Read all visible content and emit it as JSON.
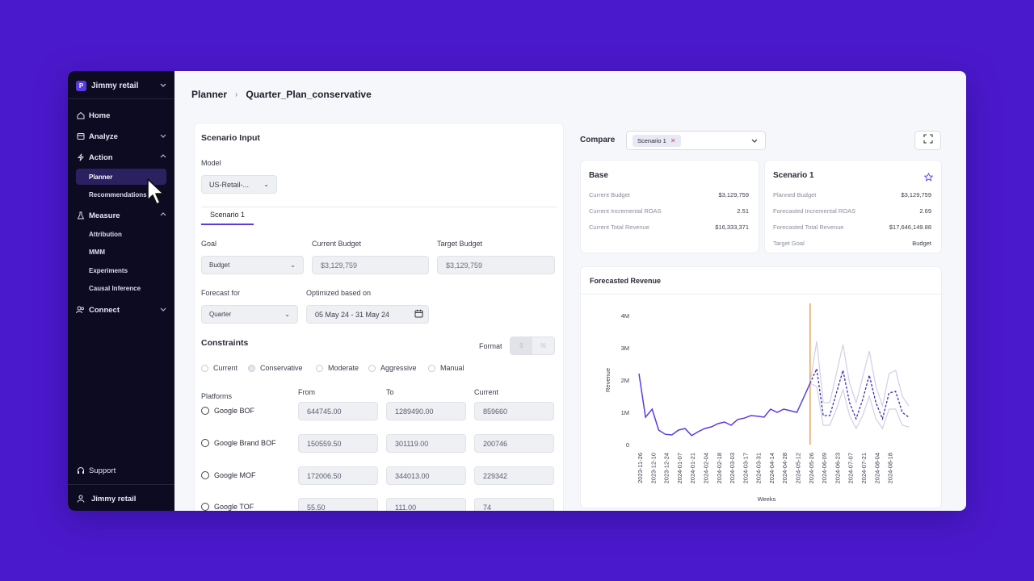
{
  "sidebar": {
    "workspace": "Jimmy retail",
    "workspace_initial": "P",
    "items": [
      {
        "label": "Home",
        "icon": "home-icon"
      },
      {
        "label": "Analyze",
        "icon": "analyze-icon"
      },
      {
        "label": "Action",
        "icon": "bolt-icon"
      },
      {
        "label": "Measure",
        "icon": "flask-icon"
      },
      {
        "label": "Connect",
        "icon": "users-icon"
      }
    ],
    "action_sub": [
      "Planner",
      "Recommendations"
    ],
    "measure_sub": [
      "Attribution",
      "MMM",
      "Experiments",
      "Causal Inference"
    ],
    "support": "Support",
    "user": "Jimmy retail"
  },
  "breadcrumb": {
    "root": "Planner",
    "current": "Quarter_Plan_conservative"
  },
  "scenario_input": {
    "title": "Scenario Input",
    "model_label": "Model",
    "model_value": "US-Retail-...",
    "tab": "Scenario 1",
    "goal_label": "Goal",
    "goal_value": "Budget",
    "current_budget_label": "Current Budget",
    "current_budget_value": "$3,129,759",
    "target_budget_label": "Target Budget",
    "target_budget_value": "$3,129,759",
    "forecast_label": "Forecast for",
    "forecast_value": "Quarter",
    "optimized_label": "Optimized based on",
    "optimized_value": "05 May 24 - 31 May 24",
    "constraints_title": "Constraints",
    "format_label": "Format",
    "format_options": [
      "$",
      "%"
    ],
    "constraint_options": [
      "Current",
      "Conservative",
      "Moderate",
      "Aggressive",
      "Manual"
    ],
    "selected_constraint": "Conservative",
    "columns": [
      "Platforms",
      "From",
      "To",
      "Current"
    ],
    "platforms": [
      {
        "name": "Google BOF",
        "from": "644745.00",
        "to": "1289490.00",
        "current": "859660"
      },
      {
        "name": "Google Brand BOF",
        "from": "150559.50",
        "to": "301119.00",
        "current": "200746"
      },
      {
        "name": "Google MOF",
        "from": "172006.50",
        "to": "344013.00",
        "current": "229342"
      },
      {
        "name": "Google TOF",
        "from": "55.50",
        "to": "111.00",
        "current": "74"
      }
    ]
  },
  "compare": {
    "label": "Compare",
    "chip": "Scenario 1",
    "base": {
      "title": "Base",
      "rows": [
        {
          "label": "Current Budget",
          "value": "$3,129,759"
        },
        {
          "label": "Current Incremental ROAS",
          "value": "2.51"
        },
        {
          "label": "Current Total Revenue",
          "value": "$16,333,371"
        }
      ]
    },
    "scenario": {
      "title": "Scenario 1",
      "rows": [
        {
          "label": "Planned Budget",
          "value": "$3,129,759"
        },
        {
          "label": "Forecasted Incremental ROAS",
          "value": "2.69"
        },
        {
          "label": "Forecasted Total Revenue",
          "value": "$17,646,149.88"
        },
        {
          "label": "Target Goal",
          "value": "Budget"
        }
      ]
    }
  },
  "forecast_chart": {
    "title": "Forecasted Revenue",
    "xlabel": "Weeks",
    "ylabel": "Revenue",
    "yticks": [
      "4M",
      "3M",
      "2M",
      "1M",
      "0"
    ],
    "xticks": [
      "2023-11-26",
      "2023-12-10",
      "2023-12-24",
      "2024-01-07",
      "2024-01-21",
      "2024-02-04",
      "2024-02-18",
      "2024-03-03",
      "2024-03-17",
      "2024-03-31",
      "2024-04-14",
      "2024-04-28",
      "2024-05-12",
      "2024-05-26",
      "2024-06-09",
      "2024-06-23",
      "2024-07-07",
      "2024-07-21",
      "2024-08-04",
      "2024-08-18"
    ]
  },
  "colors": {
    "background": "#4b19cc",
    "sidebar": "#0d0b22",
    "accent": "#5b3be0",
    "marker": "#e8a15c"
  },
  "chart_data": {
    "type": "line",
    "title": "Forecasted Revenue",
    "xlabel": "Weeks",
    "ylabel": "Revenue",
    "ylim": [
      0,
      4000000
    ],
    "marker_x": "2024-05-26",
    "series": [
      {
        "values": [
          [
            0,
            2.2
          ],
          [
            1,
            0.85
          ],
          [
            2,
            1.1
          ],
          [
            3,
            0.45
          ],
          [
            4,
            0.32
          ],
          [
            5,
            0.3
          ],
          [
            6,
            0.45
          ],
          [
            7,
            0.5
          ],
          [
            8,
            0.28
          ],
          [
            9,
            0.4
          ],
          [
            10,
            0.5
          ],
          [
            11,
            0.55
          ],
          [
            12,
            0.65
          ],
          [
            13,
            0.7
          ],
          [
            14,
            0.6
          ],
          [
            15,
            0.78
          ],
          [
            16,
            0.82
          ],
          [
            17,
            0.9
          ],
          [
            18,
            0.88
          ],
          [
            19,
            0.85
          ],
          [
            20,
            1.1
          ],
          [
            21,
            1.0
          ],
          [
            22,
            1.1
          ],
          [
            23,
            1.05
          ],
          [
            24,
            1.0
          ],
          [
            25,
            1.45
          ],
          [
            26,
            1.9
          ]
        ]
      },
      {
        "values": [
          [
            26,
            1.9
          ],
          [
            27,
            2.35
          ],
          [
            28,
            0.9
          ],
          [
            29,
            0.9
          ],
          [
            30,
            1.6
          ],
          [
            31,
            2.3
          ],
          [
            32,
            1.3
          ],
          [
            33,
            0.8
          ],
          [
            34,
            1.4
          ],
          [
            35,
            2.15
          ],
          [
            36,
            1.3
          ],
          [
            37,
            0.8
          ],
          [
            38,
            1.6
          ],
          [
            39,
            1.65
          ],
          [
            40,
            1.0
          ],
          [
            41,
            0.85
          ]
        ]
      },
      {
        "values": [
          [
            26,
            1.9
          ],
          [
            27,
            3.2
          ],
          [
            28,
            1.3
          ],
          [
            29,
            1.3
          ],
          [
            30,
            2.2
          ],
          [
            31,
            3.1
          ],
          [
            32,
            1.9
          ],
          [
            33,
            1.3
          ],
          [
            34,
            2.1
          ],
          [
            35,
            2.9
          ],
          [
            36,
            1.8
          ],
          [
            37,
            1.2
          ],
          [
            38,
            2.2
          ],
          [
            39,
            2.3
          ],
          [
            40,
            1.5
          ],
          [
            41,
            1.2
          ]
        ]
      },
      {
        "values": [
          [
            26,
            1.9
          ],
          [
            27,
            1.8
          ],
          [
            28,
            0.6
          ],
          [
            29,
            0.6
          ],
          [
            30,
            1.1
          ],
          [
            31,
            1.7
          ],
          [
            32,
            0.9
          ],
          [
            33,
            0.5
          ],
          [
            34,
            0.9
          ],
          [
            35,
            1.5
          ],
          [
            36,
            0.8
          ],
          [
            37,
            0.5
          ],
          [
            38,
            1.1
          ],
          [
            39,
            1.1
          ],
          [
            40,
            0.6
          ],
          [
            41,
            0.55
          ]
        ]
      }
    ]
  }
}
